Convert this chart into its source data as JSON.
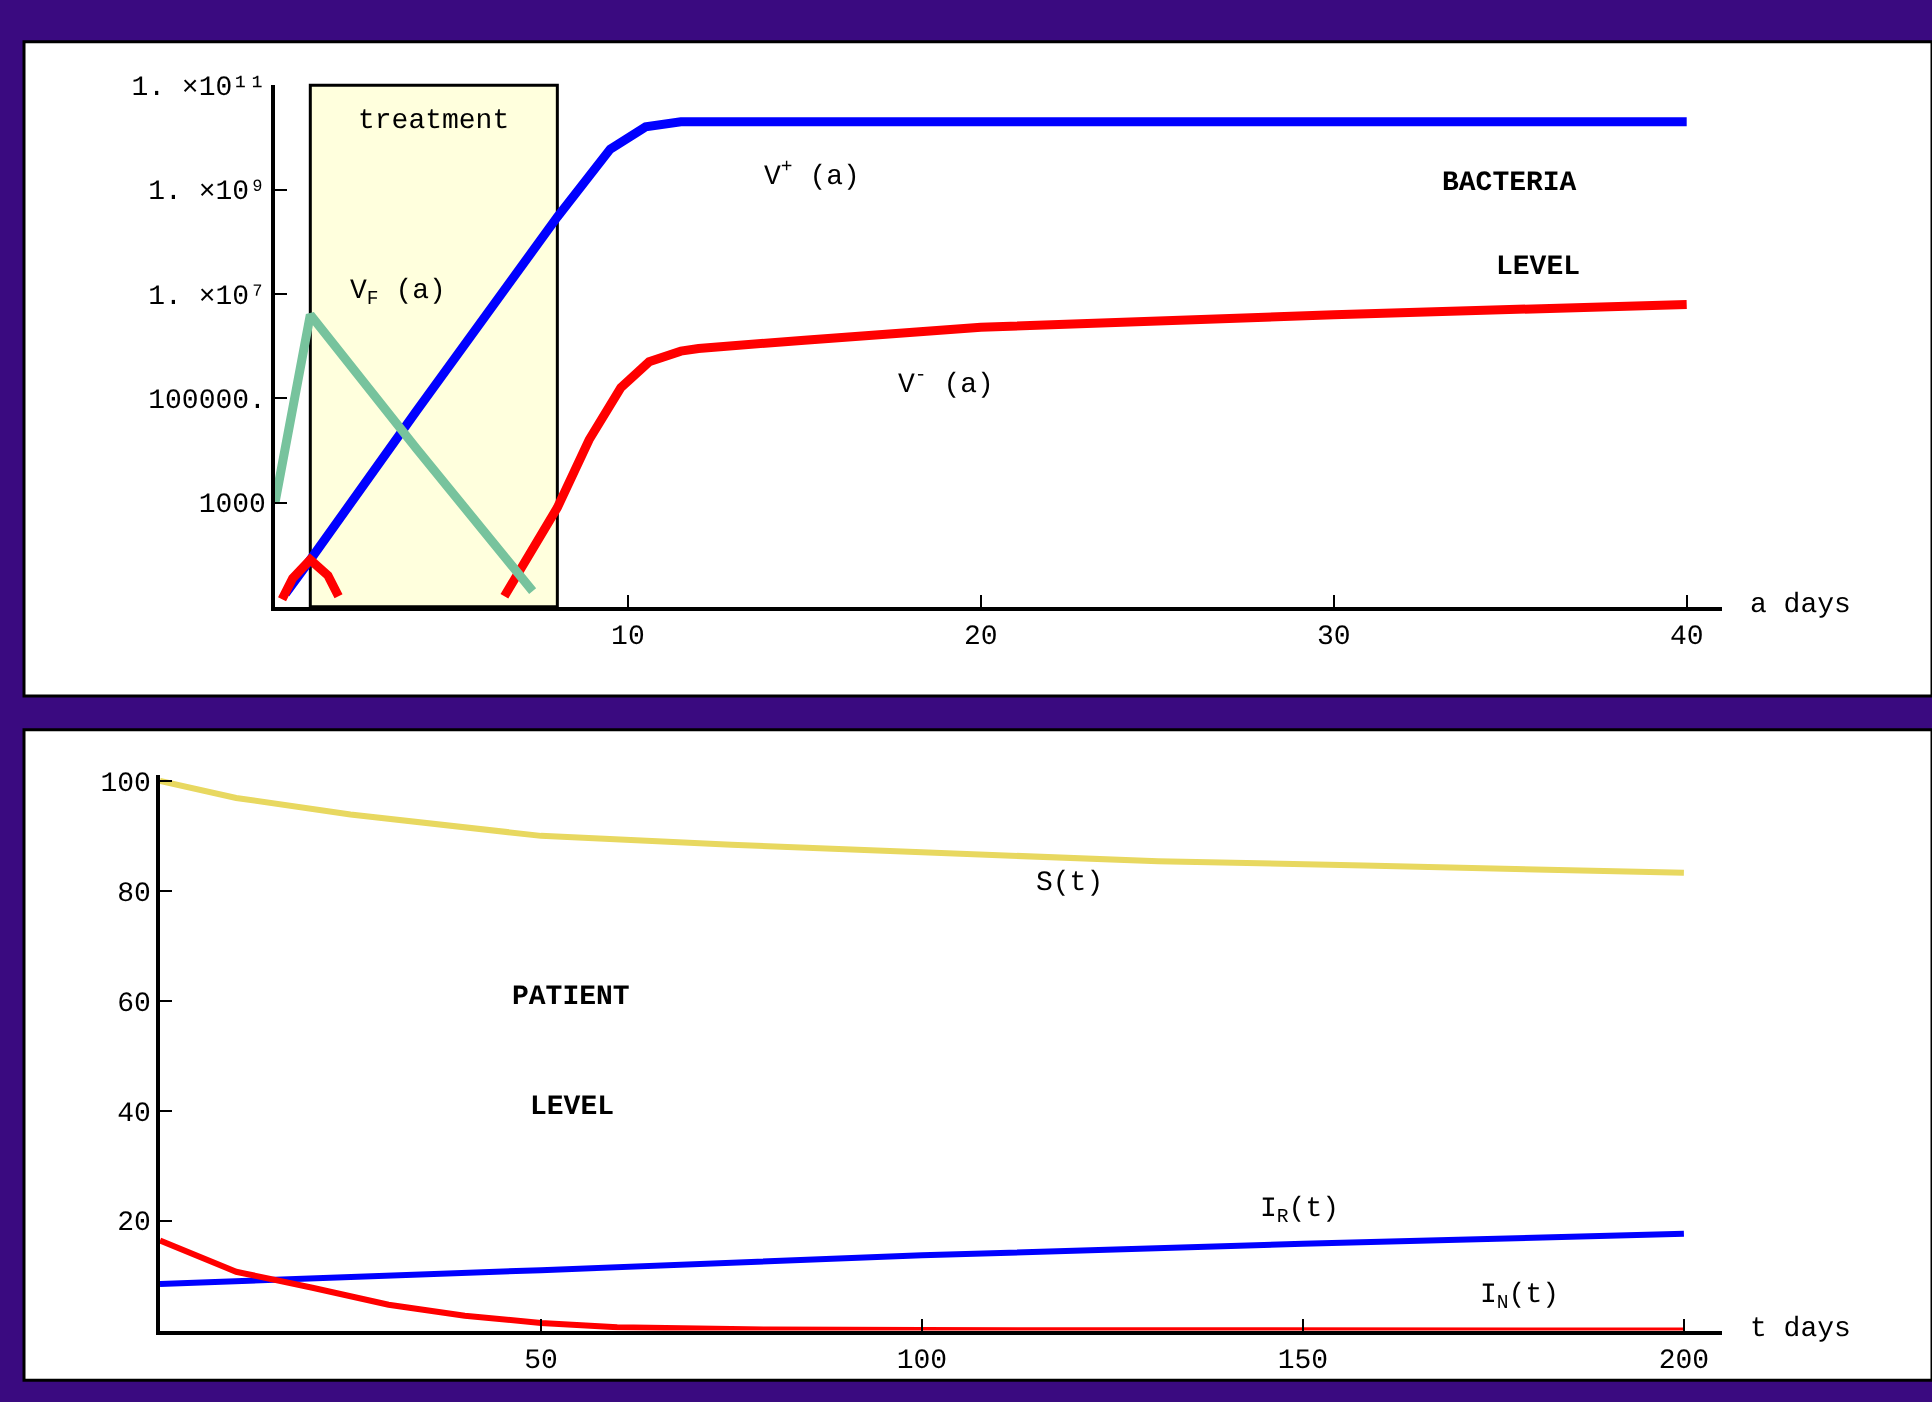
{
  "chart_data": [
    {
      "type": "line",
      "log": "y",
      "xlabel": "a days",
      "xlim": [
        0,
        41
      ],
      "xticks": [
        10,
        20,
        30,
        40
      ],
      "ylim": [
        10,
        100000000000
      ],
      "yticks": [
        1000,
        {
          "value": 100000,
          "label": "100000."
        },
        {
          "value": 10000000,
          "label": "1. ×10⁷"
        },
        {
          "value": 1000000000,
          "label": "1. ×10⁹"
        },
        {
          "value": 100000000000,
          "label": "1. ×10¹¹"
        }
      ],
      "grid": false,
      "marker": "none",
      "line_style": "solid",
      "bands": [
        {
          "axis": "x",
          "from": 1,
          "to": 8,
          "label": "treatment",
          "color": "#ffffdd"
        }
      ],
      "annotations": [
        "BACTERIA",
        "LEVEL"
      ],
      "series": [
        {
          "name": "V$^{+}$ (a)",
          "color": "#0000ff",
          "x": [
            0.3,
            1,
            4,
            8,
            9.5,
            10.5,
            11.5,
            40
          ],
          "values": [
            18,
            80,
            56000,
            300000000,
            6000000000,
            16000000000,
            20000000000,
            20000000000
          ]
        },
        {
          "name": "V$^{-}$ (a)",
          "color": "#ff0000",
          "x": [
            0.2,
            0.5,
            1,
            1.5,
            1.8,
            4,
            6.5,
            8,
            8.9,
            9.8,
            10.6,
            11.5,
            12,
            15,
            20,
            30,
            40
          ],
          "values": [
            14,
            35,
            80,
            40,
            16,
            null,
            16,
            800,
            16000,
            160000,
            500000,
            800000,
            900000,
            1300000,
            2300000,
            4000000,
            6300000
          ]
        },
        {
          "name": "V$_{F}$ (a)",
          "color": "#77c39d",
          "x": [
            0,
            1,
            4,
            7.3
          ],
          "values": [
            1000,
            4000000,
            11000,
            20
          ]
        }
      ]
    },
    {
      "type": "line",
      "xlabel": "t days",
      "xlim": [
        0,
        205
      ],
      "xticks": [
        50,
        100,
        150,
        200
      ],
      "ylim": [
        0,
        101
      ],
      "yticks": [
        20,
        40,
        60,
        80,
        100
      ],
      "grid": false,
      "marker": "none",
      "line_style": "solid",
      "annotations": [
        "PATIENT",
        "LEVEL"
      ],
      "series": [
        {
          "name": "S(t)",
          "color": "#e8d860",
          "x": [
            0,
            10,
            25,
            50,
            75,
            100,
            131,
            158,
            200
          ],
          "values": [
            100,
            96.9,
            93.9,
            90,
            88.4,
            87,
            85.4,
            84.6,
            83.3
          ]
        },
        {
          "name": "I$_{R}$(t)",
          "color": "#0000ff",
          "x": [
            0,
            50,
            100,
            150,
            200
          ],
          "values": [
            8.5,
            11,
            13.7,
            15.8,
            17.6
          ]
        },
        {
          "name": "I$_{N}$(t)",
          "color": "#ff0000",
          "x": [
            0,
            10,
            20,
            30,
            40,
            50,
            60,
            80,
            100,
            200
          ],
          "values": [
            16.4,
            10.7,
            7.8,
            4.7,
            2.7,
            1.4,
            0.6,
            0.2,
            0.1,
            0
          ]
        }
      ]
    }
  ]
}
